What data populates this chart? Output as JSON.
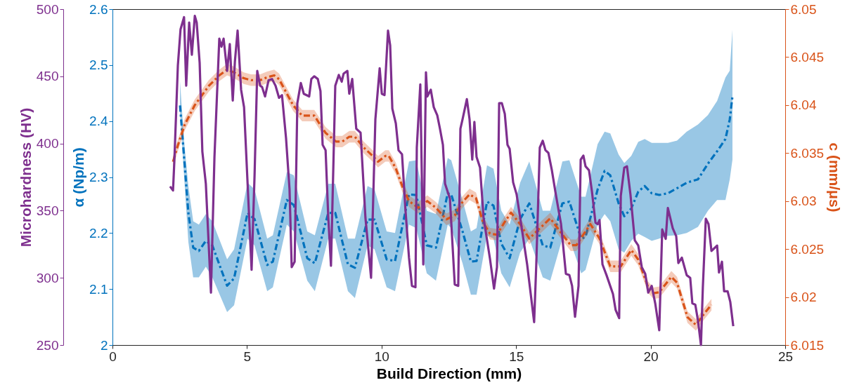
{
  "chart_data": {
    "type": "line",
    "xlabel": "Build Direction (mm)",
    "ylabel": "Microhardness (HV)",
    "y3label": "α (Np/m)",
    "y2label": "c (mm/μs)",
    "xlim": [
      0,
      25
    ],
    "xticks": [
      0,
      5,
      10,
      15,
      20,
      25
    ],
    "ylim": [
      250,
      500
    ],
    "yticks": [
      250,
      300,
      350,
      400,
      450,
      500
    ],
    "y3lim": [
      2,
      2.6
    ],
    "y3ticks": [
      2,
      2.1,
      2.2,
      2.3,
      2.4,
      2.5,
      2.6
    ],
    "y2lim": [
      6.015,
      6.05
    ],
    "y2ticks": [
      6.015,
      6.02,
      6.025,
      6.03,
      6.035,
      6.04,
      6.045,
      6.05
    ],
    "grid": false,
    "marker": "none",
    "series": [
      {
        "axis": "y3",
        "color": "#0072bd",
        "line_style": "dashed",
        "x": [
          2.51,
          2.66,
          2.82,
          3.0,
          3.21,
          3.47,
          3.71,
          4.26,
          4.52,
          5.02,
          5.28,
          5.75,
          5.96,
          6.48,
          6.74,
          7.24,
          7.52,
          8.02,
          8.28,
          8.75,
          9.01,
          9.48,
          9.74,
          10.19,
          10.5,
          11.02,
          11.29,
          11.68,
          12.02,
          12.46,
          12.59,
          13.01,
          13.32,
          13.53,
          13.92,
          14.16,
          14.45,
          14.76,
          15.15,
          15.49,
          15.99,
          16.27,
          16.72,
          16.98,
          17.42,
          17.58,
          18.03,
          18.29,
          18.5,
          18.81,
          19.02,
          19.28,
          19.54,
          19.78,
          20.04,
          20.32,
          20.64,
          20.98,
          21.34,
          21.76,
          22.13,
          22.47,
          22.78,
          22.94,
          23.04
        ],
        "values": [
          2.428,
          2.336,
          2.236,
          2.174,
          2.168,
          2.186,
          2.178,
          2.106,
          2.119,
          2.236,
          2.225,
          2.143,
          2.149,
          2.259,
          2.25,
          2.155,
          2.146,
          2.236,
          2.236,
          2.144,
          2.138,
          2.224,
          2.224,
          2.153,
          2.15,
          2.269,
          2.268,
          2.178,
          2.174,
          2.271,
          2.269,
          2.203,
          2.149,
          2.15,
          2.256,
          2.249,
          2.181,
          2.155,
          2.225,
          2.253,
          2.178,
          2.174,
          2.253,
          2.256,
          2.19,
          2.193,
          2.278,
          2.311,
          2.303,
          2.253,
          2.23,
          2.244,
          2.274,
          2.284,
          2.271,
          2.268,
          2.271,
          2.28,
          2.29,
          2.296,
          2.324,
          2.346,
          2.368,
          2.403,
          2.444
        ],
        "upper": [
          2.471,
          2.365,
          2.284,
          2.221,
          2.215,
          2.234,
          2.221,
          2.153,
          2.171,
          2.29,
          2.278,
          2.19,
          2.196,
          2.309,
          2.303,
          2.203,
          2.196,
          2.288,
          2.288,
          2.19,
          2.19,
          2.284,
          2.278,
          2.203,
          2.2,
          2.328,
          2.33,
          2.24,
          2.234,
          2.334,
          2.33,
          2.259,
          2.203,
          2.209,
          2.321,
          2.315,
          2.24,
          2.215,
          2.29,
          2.328,
          2.24,
          2.24,
          2.328,
          2.33,
          2.265,
          2.265,
          2.359,
          2.381,
          2.378,
          2.34,
          2.325,
          2.338,
          2.363,
          2.368,
          2.361,
          2.361,
          2.361,
          2.365,
          2.381,
          2.394,
          2.411,
          2.436,
          2.478,
          2.49,
          2.563
        ],
        "lower": [
          2.415,
          2.303,
          2.184,
          2.121,
          2.121,
          2.14,
          2.121,
          2.059,
          2.071,
          2.19,
          2.178,
          2.096,
          2.103,
          2.215,
          2.203,
          2.115,
          2.096,
          2.19,
          2.19,
          2.096,
          2.084,
          2.178,
          2.171,
          2.103,
          2.096,
          2.215,
          2.209,
          2.128,
          2.115,
          2.215,
          2.209,
          2.146,
          2.09,
          2.09,
          2.196,
          2.19,
          2.128,
          2.103,
          2.165,
          2.19,
          2.121,
          2.115,
          2.19,
          2.19,
          2.128,
          2.134,
          2.215,
          2.234,
          2.221,
          2.171,
          2.165,
          2.186,
          2.199,
          2.193,
          2.186,
          2.19,
          2.195,
          2.196,
          2.2,
          2.211,
          2.24,
          2.259,
          2.259,
          2.296,
          2.331
        ]
      },
      {
        "axis": "y2",
        "color": "#d95319",
        "line_style": "dashed",
        "x": [
          2.25,
          2.43,
          2.69,
          3.06,
          3.58,
          3.97,
          4.26,
          4.52,
          4.88,
          5.15,
          5.49,
          5.75,
          6.01,
          6.19,
          6.71,
          7.05,
          7.5,
          7.92,
          8.31,
          8.54,
          8.8,
          9.01,
          9.33,
          9.67,
          9.87,
          10.14,
          10.27,
          10.53,
          10.79,
          11.02,
          11.36,
          11.7,
          12.02,
          12.41,
          12.72,
          12.98,
          13.27,
          13.51,
          13.77,
          14.03,
          14.29,
          14.55,
          14.81,
          15.15,
          15.49,
          15.86,
          16.27,
          16.64,
          17.03,
          17.24,
          17.76,
          18.1,
          18.29,
          18.5,
          18.89,
          19.28,
          19.54,
          19.91,
          20.11,
          20.32,
          20.77,
          20.98,
          21.37,
          21.68,
          22.0,
          22.26
        ],
        "values": [
          6.0341,
          6.0358,
          6.038,
          6.04,
          6.042,
          6.0431,
          6.0437,
          6.0434,
          6.0428,
          6.0426,
          6.0426,
          6.0429,
          6.0431,
          6.0427,
          6.04,
          6.0389,
          6.0389,
          6.0371,
          6.0362,
          6.0362,
          6.0367,
          6.0367,
          6.0356,
          6.0347,
          6.0341,
          6.0347,
          6.0347,
          6.0334,
          6.0314,
          6.03,
          6.0293,
          6.03,
          6.0293,
          6.0281,
          6.0285,
          6.0298,
          6.0307,
          6.0303,
          6.0278,
          6.0266,
          6.0265,
          6.0277,
          6.0288,
          6.0276,
          6.0261,
          6.0271,
          6.0282,
          6.0268,
          6.0254,
          6.0254,
          6.0276,
          6.0261,
          6.0247,
          6.0232,
          6.0232,
          6.0249,
          6.0239,
          6.021,
          6.0204,
          6.0205,
          6.0221,
          6.0215,
          6.0179,
          6.0171,
          6.0183,
          6.0192
        ],
        "upper": [
          6.0347,
          6.0364,
          6.0386,
          6.0406,
          6.0426,
          6.0437,
          6.0443,
          6.044,
          6.0434,
          6.0432,
          6.0432,
          6.0435,
          6.0437,
          6.0433,
          6.0406,
          6.0395,
          6.0395,
          6.0377,
          6.0368,
          6.0368,
          6.0373,
          6.0373,
          6.0362,
          6.0353,
          6.0347,
          6.0353,
          6.0353,
          6.034,
          6.032,
          6.0306,
          6.0299,
          6.0306,
          6.0299,
          6.0287,
          6.0291,
          6.0304,
          6.0313,
          6.0309,
          6.0284,
          6.0272,
          6.0271,
          6.0283,
          6.0294,
          6.0282,
          6.0267,
          6.0277,
          6.0288,
          6.0274,
          6.026,
          6.026,
          6.0282,
          6.0267,
          6.0253,
          6.0238,
          6.0238,
          6.0255,
          6.0245,
          6.0216,
          6.021,
          6.0211,
          6.0227,
          6.0221,
          6.0185,
          6.0177,
          6.0189,
          6.0198
        ],
        "lower": [
          6.0335,
          6.0352,
          6.0374,
          6.0394,
          6.0414,
          6.0425,
          6.0431,
          6.0428,
          6.0422,
          6.042,
          6.042,
          6.0423,
          6.0425,
          6.0421,
          6.0394,
          6.0383,
          6.0383,
          6.0365,
          6.0356,
          6.0356,
          6.0361,
          6.0361,
          6.035,
          6.0341,
          6.0335,
          6.0341,
          6.0341,
          6.0328,
          6.0308,
          6.0294,
          6.0287,
          6.0294,
          6.0287,
          6.0275,
          6.0279,
          6.0292,
          6.0301,
          6.0297,
          6.0272,
          6.026,
          6.0259,
          6.0271,
          6.0282,
          6.027,
          6.0255,
          6.0265,
          6.0276,
          6.0262,
          6.0248,
          6.0248,
          6.027,
          6.0255,
          6.0241,
          6.0226,
          6.0226,
          6.0243,
          6.0233,
          6.0204,
          6.0198,
          6.0199,
          6.0215,
          6.0209,
          6.0173,
          6.0165,
          6.0177,
          6.0186
        ]
      },
      {
        "axis": "y",
        "color": "#7e2f8e",
        "line_style": "solid",
        "x": [
          2.14,
          2.25,
          2.3,
          2.43,
          2.53,
          2.66,
          2.74,
          2.85,
          2.95,
          3.06,
          3.13,
          3.24,
          3.34,
          3.47,
          3.66,
          3.79,
          3.97,
          4.05,
          4.13,
          4.26,
          4.36,
          4.47,
          4.55,
          4.65,
          4.78,
          4.89,
          5.17,
          5.28,
          5.38,
          5.49,
          5.56,
          5.67,
          5.8,
          5.93,
          6.06,
          6.19,
          6.3,
          6.45,
          6.58,
          6.66,
          6.77,
          6.87,
          7.0,
          7.11,
          7.31,
          7.39,
          7.5,
          7.63,
          7.73,
          7.81,
          7.92,
          8.02,
          8.12,
          8.28,
          8.41,
          8.52,
          8.59,
          8.73,
          8.8,
          8.91,
          9.06,
          9.22,
          9.4,
          9.61,
          9.77,
          9.93,
          10.01,
          10.11,
          10.24,
          10.32,
          10.4,
          10.53,
          10.63,
          10.76,
          10.89,
          11.02,
          11.13,
          11.26,
          11.31,
          11.44,
          11.55,
          11.65,
          11.7,
          11.83,
          11.94,
          12.07,
          12.17,
          12.28,
          12.36,
          12.54,
          12.72,
          12.85,
          12.93,
          13.01,
          13.17,
          13.27,
          13.37,
          13.45,
          13.53,
          13.66,
          13.79,
          14.03,
          14.18,
          14.29,
          14.37,
          14.47,
          14.58,
          14.68,
          14.76,
          14.89,
          15.02,
          15.15,
          15.41,
          15.67,
          15.75,
          15.88,
          15.99,
          16.09,
          16.2,
          16.33,
          16.46,
          16.59,
          16.67,
          16.85,
          16.98,
          17.08,
          17.19,
          17.32,
          17.4,
          17.5,
          17.58,
          17.71,
          17.82,
          17.95,
          18.03,
          18.1,
          18.21,
          18.36,
          18.6,
          18.7,
          18.83,
          18.89,
          19.02,
          19.12,
          19.25,
          19.41,
          19.54,
          19.67,
          19.8,
          19.91,
          20.04,
          20.17,
          20.32,
          20.43,
          20.56,
          20.64,
          20.82,
          20.95,
          21.03,
          21.16,
          21.34,
          21.47,
          21.55,
          21.66,
          21.76,
          21.87,
          21.94,
          22.05,
          22.15,
          22.26,
          22.47,
          22.54,
          22.65,
          22.73,
          22.86,
          22.96,
          23.07
        ],
        "values": [
          368,
          365,
          387,
          458,
          485,
          494,
          443,
          490,
          466,
          495,
          490,
          460,
          394,
          370,
          289,
          390,
          478,
          472,
          478,
          454,
          474,
          432,
          461,
          484,
          440,
          427,
          306,
          376,
          454,
          443,
          442,
          435,
          447,
          448,
          443,
          434,
          436,
          404,
          366,
          308,
          312,
          430,
          445,
          437,
          435,
          448,
          450,
          448,
          439,
          399,
          395,
          345,
          309,
          443,
          451,
          446,
          452,
          454,
          437,
          448,
          411,
          408,
          345,
          300,
          418,
          456,
          437,
          436,
          484,
          473,
          426,
          415,
          395,
          392,
          350,
          315,
          294,
          293,
          397,
          444,
          310,
          453,
          435,
          440,
          427,
          421,
          411,
          399,
          370,
          359,
          295,
          294,
          411,
          418,
          433,
          418,
          388,
          416,
          390,
          382,
          345,
          314,
          292,
          308,
          430,
          430,
          422,
          399,
          396,
          371,
          362,
          345,
          310,
          267,
          310,
          397,
          402,
          395,
          393,
          380,
          364,
          349,
          340,
          303,
          302,
          294,
          271,
          294,
          388,
          391,
          383,
          380,
          364,
          341,
          340,
          343,
          310,
          302,
          288,
          276,
          270,
          361,
          382,
          383,
          362,
          328,
          324,
          308,
          303,
          289,
          294,
          281,
          261,
          336,
          329,
          352,
          337,
          331,
          311,
          315,
          302,
          300,
          281,
          280,
          268,
          250,
          293,
          344,
          340,
          320,
          324,
          304,
          312,
          290,
          290,
          282,
          264
        ]
      }
    ]
  }
}
